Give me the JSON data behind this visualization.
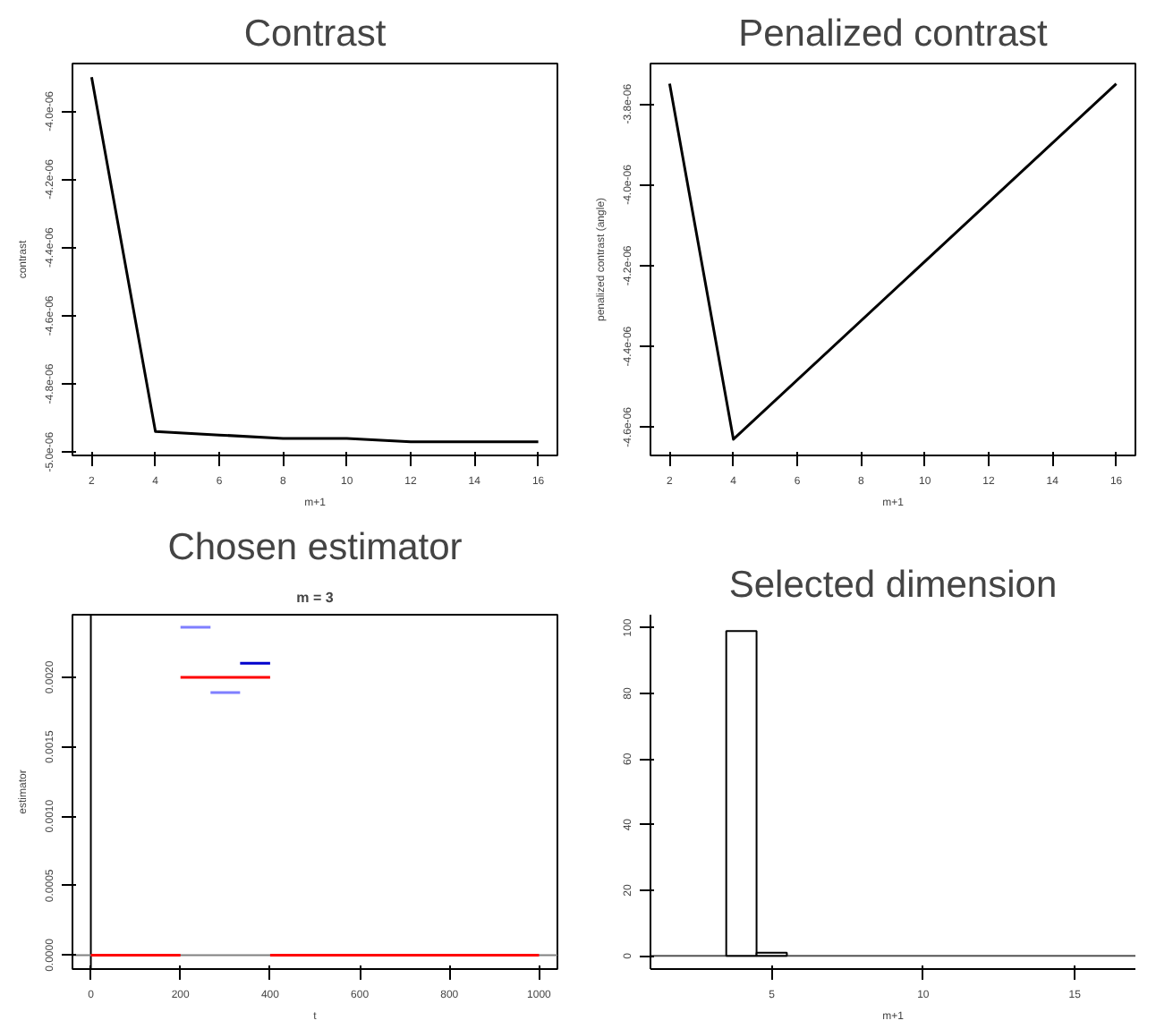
{
  "chart_data": [
    {
      "type": "line",
      "title": "Contrast",
      "xlabel": "m+1",
      "ylabel": "contrast",
      "xlim": [
        1.4,
        16.6
      ],
      "ylim": [
        -5.01e-06,
        -3.86e-06
      ],
      "xticks": [
        2,
        4,
        6,
        8,
        10,
        12,
        14,
        16
      ],
      "yticks": [
        {
          "value": -5e-06,
          "label": "-5.0e-06"
        },
        {
          "value": -4.8e-06,
          "label": "-4.8e-06"
        },
        {
          "value": -4.6e-06,
          "label": "-4.6e-06"
        },
        {
          "value": -4.4e-06,
          "label": "-4.4e-06"
        },
        {
          "value": -4.2e-06,
          "label": "-4.2e-06"
        },
        {
          "value": -4e-06,
          "label": "-4.0e-06"
        }
      ],
      "grid": false,
      "series": [
        {
          "color": "#000000",
          "x": [
            2,
            4,
            6,
            8,
            10,
            12,
            14,
            16
          ],
          "values": [
            -3.9e-06,
            -4.94e-06,
            -4.95e-06,
            -4.96e-06,
            -4.96e-06,
            -4.97e-06,
            -4.97e-06,
            -4.97e-06
          ]
        }
      ]
    },
    {
      "type": "line",
      "title": "Penalized contrast",
      "xlabel": "m+1",
      "ylabel": "penalized contrast (angle)",
      "xlim": [
        1.4,
        16.6
      ],
      "ylim": [
        -4.67e-06,
        -3.7e-06
      ],
      "xticks": [
        2,
        4,
        6,
        8,
        10,
        12,
        14,
        16
      ],
      "yticks": [
        {
          "value": -4.6e-06,
          "label": "-4.6e-06"
        },
        {
          "value": -4.4e-06,
          "label": "-4.4e-06"
        },
        {
          "value": -4.2e-06,
          "label": "-4.2e-06"
        },
        {
          "value": -4e-06,
          "label": "-4.0e-06"
        },
        {
          "value": -3.8e-06,
          "label": "-3.8e-06"
        }
      ],
      "grid": false,
      "series": [
        {
          "color": "#000000",
          "x": [
            2,
            4,
            16
          ],
          "values": [
            -3.75e-06,
            -4.63e-06,
            -3.75e-06
          ]
        }
      ]
    },
    {
      "type": "line",
      "title": "Chosen estimator",
      "subtitle": "m = 3",
      "xlabel": "t",
      "ylabel": "estimator",
      "xlim": [
        -41,
        1041
      ],
      "ylim": [
        -0.0001,
        0.00245
      ],
      "xticks": [
        0,
        200,
        400,
        600,
        800,
        1000
      ],
      "yticks": [
        {
          "value": 0,
          "label": "0.0000"
        },
        {
          "value": 0.0005,
          "label": "0.0005"
        },
        {
          "value": 0.001,
          "label": "0.0010"
        },
        {
          "value": 0.0015,
          "label": "0.0015"
        },
        {
          "value": 0.002,
          "label": "0.0020"
        }
      ],
      "grid": false,
      "ref_lines": [
        {
          "axis": "x",
          "value": 0,
          "color": "#000000"
        },
        {
          "axis": "y",
          "value": 0,
          "color": "#808080"
        }
      ],
      "series": [
        {
          "color": "#7f7fff",
          "x": [
            200,
            267
          ],
          "values": [
            0.00236,
            0.00236
          ]
        },
        {
          "color": "#7f7fff",
          "x": [
            267,
            333
          ],
          "values": [
            0.00189,
            0.00189
          ]
        },
        {
          "color": "#0000cc",
          "x": [
            333,
            400
          ],
          "values": [
            0.0021,
            0.0021
          ]
        },
        {
          "color": "#ff0000",
          "x": [
            0,
            200
          ],
          "values": [
            0,
            0
          ]
        },
        {
          "color": "#ff0000",
          "x": [
            200,
            400
          ],
          "values": [
            0.002,
            0.002
          ]
        },
        {
          "color": "#ff0000",
          "x": [
            400,
            1000
          ],
          "values": [
            0,
            0
          ]
        }
      ]
    },
    {
      "type": "histogram",
      "title": "Selected dimension",
      "xlabel": "m+1",
      "xlim": [
        1,
        17
      ],
      "ylim": [
        -4,
        104
      ],
      "xticks": [
        5,
        10,
        15
      ],
      "yticks": [
        0,
        20,
        40,
        60,
        80,
        100
      ],
      "grid": false,
      "color": "#ffffff",
      "ref_lines": [
        {
          "axis": "y",
          "value": 0,
          "color": "#555555"
        }
      ],
      "bins": [
        3.5,
        4.5,
        5.5
      ],
      "values": [
        99,
        1
      ]
    }
  ]
}
